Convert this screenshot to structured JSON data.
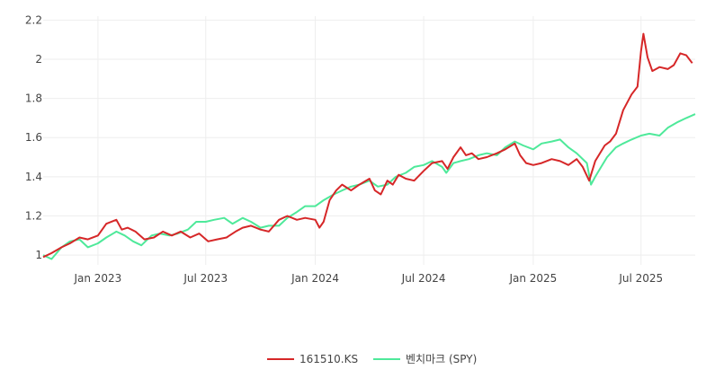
{
  "chart_data": {
    "type": "line",
    "title": "",
    "xlabel": "",
    "ylabel": "",
    "x_range": [
      "2022-10-01",
      "2025-09-30"
    ],
    "ylim": [
      0.95,
      2.22
    ],
    "x_ticks": [
      {
        "date": "2023-01-01",
        "label": "Jan 2023"
      },
      {
        "date": "2023-07-01",
        "label": "Jul 2023"
      },
      {
        "date": "2024-01-01",
        "label": "Jan 2024"
      },
      {
        "date": "2024-07-01",
        "label": "Jul 2024"
      },
      {
        "date": "2025-01-01",
        "label": "Jan 2025"
      },
      {
        "date": "2025-07-01",
        "label": "Jul 2025"
      }
    ],
    "y_ticks": [
      {
        "value": 1,
        "label": "1"
      },
      {
        "value": 1.2,
        "label": "1.2"
      },
      {
        "value": 1.4,
        "label": "1.4"
      },
      {
        "value": 1.6,
        "label": "1.6"
      },
      {
        "value": 1.8,
        "label": "1.8"
      },
      {
        "value": 2,
        "label": "2"
      },
      {
        "value": 2.2,
        "label": "2.2"
      }
    ],
    "grid": true,
    "legend_position": "bottom-center",
    "series": [
      {
        "name": "161510.KS",
        "color": "#d62728",
        "points": [
          [
            "2022-10-01",
            0.99
          ],
          [
            "2022-10-15",
            1.01
          ],
          [
            "2022-11-01",
            1.04
          ],
          [
            "2022-11-15",
            1.06
          ],
          [
            "2022-12-01",
            1.09
          ],
          [
            "2022-12-15",
            1.08
          ],
          [
            "2023-01-01",
            1.1
          ],
          [
            "2023-01-15",
            1.16
          ],
          [
            "2023-02-01",
            1.18
          ],
          [
            "2023-02-10",
            1.13
          ],
          [
            "2023-02-20",
            1.14
          ],
          [
            "2023-03-05",
            1.12
          ],
          [
            "2023-03-20",
            1.08
          ],
          [
            "2023-04-05",
            1.09
          ],
          [
            "2023-04-20",
            1.12
          ],
          [
            "2023-05-05",
            1.1
          ],
          [
            "2023-05-20",
            1.12
          ],
          [
            "2023-06-05",
            1.09
          ],
          [
            "2023-06-20",
            1.11
          ],
          [
            "2023-07-05",
            1.07
          ],
          [
            "2023-07-20",
            1.08
          ],
          [
            "2023-08-05",
            1.09
          ],
          [
            "2023-08-20",
            1.12
          ],
          [
            "2023-09-01",
            1.14
          ],
          [
            "2023-09-15",
            1.15
          ],
          [
            "2023-10-01",
            1.13
          ],
          [
            "2023-10-15",
            1.12
          ],
          [
            "2023-11-01",
            1.18
          ],
          [
            "2023-11-15",
            1.2
          ],
          [
            "2023-12-01",
            1.18
          ],
          [
            "2023-12-15",
            1.19
          ],
          [
            "2024-01-01",
            1.18
          ],
          [
            "2024-01-08",
            1.14
          ],
          [
            "2024-01-15",
            1.17
          ],
          [
            "2024-01-25",
            1.28
          ],
          [
            "2024-02-05",
            1.33
          ],
          [
            "2024-02-15",
            1.36
          ],
          [
            "2024-03-01",
            1.33
          ],
          [
            "2024-03-15",
            1.36
          ],
          [
            "2024-04-01",
            1.39
          ],
          [
            "2024-04-10",
            1.33
          ],
          [
            "2024-04-20",
            1.31
          ],
          [
            "2024-05-01",
            1.38
          ],
          [
            "2024-05-10",
            1.36
          ],
          [
            "2024-05-20",
            1.41
          ],
          [
            "2024-06-01",
            1.39
          ],
          [
            "2024-06-15",
            1.38
          ],
          [
            "2024-07-01",
            1.43
          ],
          [
            "2024-07-15",
            1.47
          ],
          [
            "2024-08-01",
            1.48
          ],
          [
            "2024-08-10",
            1.44
          ],
          [
            "2024-08-20",
            1.5
          ],
          [
            "2024-09-01",
            1.55
          ],
          [
            "2024-09-10",
            1.51
          ],
          [
            "2024-09-20",
            1.52
          ],
          [
            "2024-10-01",
            1.49
          ],
          [
            "2024-10-15",
            1.5
          ],
          [
            "2024-11-01",
            1.52
          ],
          [
            "2024-11-15",
            1.54
          ],
          [
            "2024-12-01",
            1.57
          ],
          [
            "2024-12-10",
            1.51
          ],
          [
            "2024-12-20",
            1.47
          ],
          [
            "2025-01-01",
            1.46
          ],
          [
            "2025-01-15",
            1.47
          ],
          [
            "2025-02-01",
            1.49
          ],
          [
            "2025-02-15",
            1.48
          ],
          [
            "2025-03-01",
            1.46
          ],
          [
            "2025-03-15",
            1.49
          ],
          [
            "2025-03-25",
            1.45
          ],
          [
            "2025-04-05",
            1.38
          ],
          [
            "2025-04-15",
            1.48
          ],
          [
            "2025-05-01",
            1.56
          ],
          [
            "2025-05-10",
            1.58
          ],
          [
            "2025-05-20",
            1.62
          ],
          [
            "2025-06-01",
            1.74
          ],
          [
            "2025-06-15",
            1.82
          ],
          [
            "2025-06-25",
            1.86
          ],
          [
            "2025-07-01",
            2.04
          ],
          [
            "2025-07-05",
            2.13
          ],
          [
            "2025-07-12",
            2.01
          ],
          [
            "2025-07-20",
            1.94
          ],
          [
            "2025-08-01",
            1.96
          ],
          [
            "2025-08-15",
            1.95
          ],
          [
            "2025-08-25",
            1.97
          ],
          [
            "2025-09-05",
            2.03
          ],
          [
            "2025-09-15",
            2.02
          ],
          [
            "2025-09-25",
            1.98
          ]
        ]
      },
      {
        "name": "벤치마크 (SPY)",
        "color": "#4ee99a",
        "points": [
          [
            "2022-10-01",
            1.0
          ],
          [
            "2022-10-15",
            0.98
          ],
          [
            "2022-11-01",
            1.04
          ],
          [
            "2022-11-15",
            1.07
          ],
          [
            "2022-12-01",
            1.08
          ],
          [
            "2022-12-15",
            1.04
          ],
          [
            "2023-01-01",
            1.06
          ],
          [
            "2023-01-15",
            1.09
          ],
          [
            "2023-02-01",
            1.12
          ],
          [
            "2023-02-15",
            1.1
          ],
          [
            "2023-03-01",
            1.07
          ],
          [
            "2023-03-15",
            1.05
          ],
          [
            "2023-04-01",
            1.1
          ],
          [
            "2023-04-15",
            1.11
          ],
          [
            "2023-05-01",
            1.1
          ],
          [
            "2023-05-15",
            1.11
          ],
          [
            "2023-06-01",
            1.13
          ],
          [
            "2023-06-15",
            1.17
          ],
          [
            "2023-07-01",
            1.17
          ],
          [
            "2023-07-15",
            1.18
          ],
          [
            "2023-08-01",
            1.19
          ],
          [
            "2023-08-15",
            1.16
          ],
          [
            "2023-09-01",
            1.19
          ],
          [
            "2023-09-15",
            1.17
          ],
          [
            "2023-10-01",
            1.14
          ],
          [
            "2023-10-15",
            1.15
          ],
          [
            "2023-11-01",
            1.15
          ],
          [
            "2023-11-15",
            1.19
          ],
          [
            "2023-12-01",
            1.22
          ],
          [
            "2023-12-15",
            1.25
          ],
          [
            "2024-01-01",
            1.25
          ],
          [
            "2024-01-15",
            1.28
          ],
          [
            "2024-02-01",
            1.31
          ],
          [
            "2024-02-15",
            1.33
          ],
          [
            "2024-03-01",
            1.35
          ],
          [
            "2024-03-15",
            1.36
          ],
          [
            "2024-04-01",
            1.38
          ],
          [
            "2024-04-15",
            1.35
          ],
          [
            "2024-05-01",
            1.36
          ],
          [
            "2024-05-15",
            1.4
          ],
          [
            "2024-06-01",
            1.42
          ],
          [
            "2024-06-15",
            1.45
          ],
          [
            "2024-07-01",
            1.46
          ],
          [
            "2024-07-15",
            1.48
          ],
          [
            "2024-08-01",
            1.45
          ],
          [
            "2024-08-08",
            1.42
          ],
          [
            "2024-08-20",
            1.47
          ],
          [
            "2024-09-01",
            1.48
          ],
          [
            "2024-09-15",
            1.49
          ],
          [
            "2024-10-01",
            1.51
          ],
          [
            "2024-10-15",
            1.52
          ],
          [
            "2024-11-01",
            1.51
          ],
          [
            "2024-11-15",
            1.55
          ],
          [
            "2024-12-01",
            1.58
          ],
          [
            "2024-12-15",
            1.56
          ],
          [
            "2025-01-01",
            1.54
          ],
          [
            "2025-01-15",
            1.57
          ],
          [
            "2025-02-01",
            1.58
          ],
          [
            "2025-02-15",
            1.59
          ],
          [
            "2025-03-01",
            1.55
          ],
          [
            "2025-03-15",
            1.52
          ],
          [
            "2025-04-01",
            1.47
          ],
          [
            "2025-04-08",
            1.36
          ],
          [
            "2025-04-15",
            1.4
          ],
          [
            "2025-04-25",
            1.45
          ],
          [
            "2025-05-05",
            1.5
          ],
          [
            "2025-05-20",
            1.55
          ],
          [
            "2025-06-01",
            1.57
          ],
          [
            "2025-06-15",
            1.59
          ],
          [
            "2025-07-01",
            1.61
          ],
          [
            "2025-07-15",
            1.62
          ],
          [
            "2025-08-01",
            1.61
          ],
          [
            "2025-08-15",
            1.65
          ],
          [
            "2025-09-01",
            1.68
          ],
          [
            "2025-09-15",
            1.7
          ],
          [
            "2025-09-30",
            1.72
          ]
        ]
      }
    ]
  }
}
